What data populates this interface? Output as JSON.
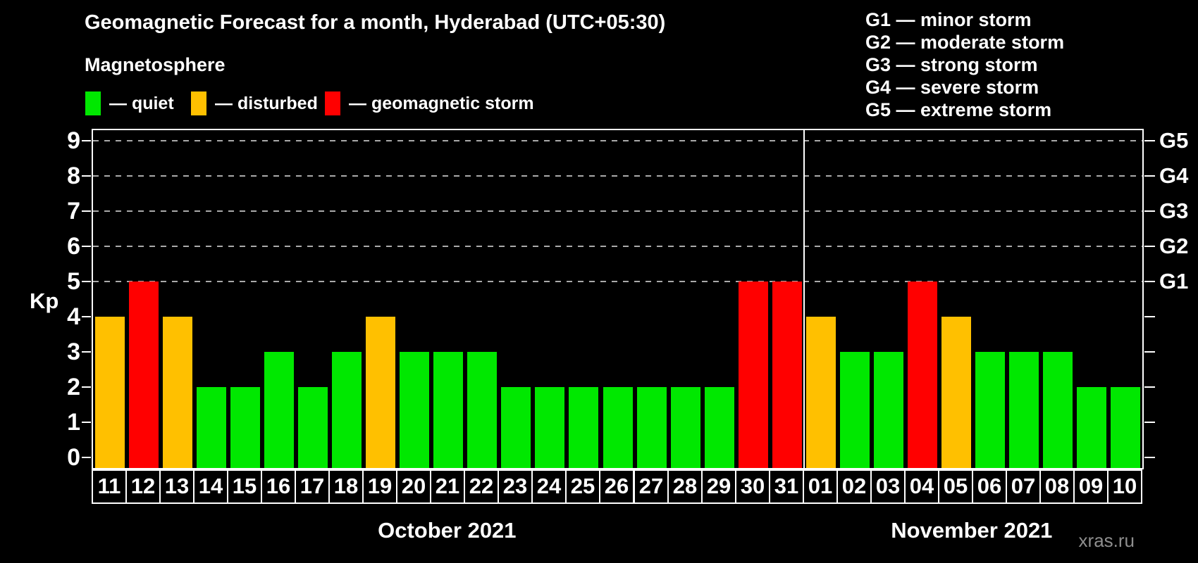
{
  "header": {
    "title": "Geomagnetic Forecast for a month, Hyderabad (UTC+05:30)",
    "subtitle": "Magnetosphere"
  },
  "status_legend": {
    "items": [
      {
        "label": "— quiet",
        "swatch_color": "#00e800",
        "status": "quiet"
      },
      {
        "label": "— disturbed",
        "swatch_color": "#ffc000",
        "status": "disturbed"
      },
      {
        "label": "— geomagnetic storm",
        "swatch_color": "#ff0000",
        "status": "storm"
      }
    ]
  },
  "g_scale_legend": {
    "lines": [
      "G1 — minor storm",
      "G2 — moderate storm",
      "G3 — strong storm",
      "G4 — severe storm",
      "G5 — extreme storm"
    ]
  },
  "watermark": "xras.ru",
  "chart_data": {
    "type": "bar",
    "title": "Geomagnetic Forecast for a month, Hyderabad (UTC+05:30)",
    "xlabel": "",
    "ylabel": "Kp",
    "ylim": [
      0,
      9
    ],
    "y_ticks": [
      0,
      1,
      2,
      3,
      4,
      5,
      6,
      7,
      8,
      9
    ],
    "gridlines_at": [
      5,
      6,
      7,
      8,
      9
    ],
    "grid": "dashed-horizontal",
    "legend_position": "top",
    "right_axis_labels": [
      {
        "value": 5,
        "label": "G1"
      },
      {
        "value": 6,
        "label": "G2"
      },
      {
        "value": 7,
        "label": "G3"
      },
      {
        "value": 8,
        "label": "G4"
      },
      {
        "value": 9,
        "label": "G5"
      }
    ],
    "status_colors": {
      "quiet": "#00e800",
      "disturbed": "#ffc000",
      "storm": "#ff0000"
    },
    "groups": [
      {
        "label": "October 2021",
        "days": [
          {
            "day": "11",
            "kp": 4,
            "status": "disturbed"
          },
          {
            "day": "12",
            "kp": 5,
            "status": "storm"
          },
          {
            "day": "13",
            "kp": 4,
            "status": "disturbed"
          },
          {
            "day": "14",
            "kp": 2,
            "status": "quiet"
          },
          {
            "day": "15",
            "kp": 2,
            "status": "quiet"
          },
          {
            "day": "16",
            "kp": 3,
            "status": "quiet"
          },
          {
            "day": "17",
            "kp": 2,
            "status": "quiet"
          },
          {
            "day": "18",
            "kp": 3,
            "status": "quiet"
          },
          {
            "day": "19",
            "kp": 4,
            "status": "disturbed"
          },
          {
            "day": "20",
            "kp": 3,
            "status": "quiet"
          },
          {
            "day": "21",
            "kp": 3,
            "status": "quiet"
          },
          {
            "day": "22",
            "kp": 3,
            "status": "quiet"
          },
          {
            "day": "23",
            "kp": 2,
            "status": "quiet"
          },
          {
            "day": "24",
            "kp": 2,
            "status": "quiet"
          },
          {
            "day": "25",
            "kp": 2,
            "status": "quiet"
          },
          {
            "day": "26",
            "kp": 2,
            "status": "quiet"
          },
          {
            "day": "27",
            "kp": 2,
            "status": "quiet"
          },
          {
            "day": "28",
            "kp": 2,
            "status": "quiet"
          },
          {
            "day": "29",
            "kp": 2,
            "status": "quiet"
          },
          {
            "day": "30",
            "kp": 5,
            "status": "storm"
          },
          {
            "day": "31",
            "kp": 5,
            "status": "storm"
          }
        ]
      },
      {
        "label": "November 2021",
        "days": [
          {
            "day": "01",
            "kp": 4,
            "status": "disturbed"
          },
          {
            "day": "02",
            "kp": 3,
            "status": "quiet"
          },
          {
            "day": "03",
            "kp": 3,
            "status": "quiet"
          },
          {
            "day": "04",
            "kp": 5,
            "status": "storm"
          },
          {
            "day": "05",
            "kp": 4,
            "status": "disturbed"
          },
          {
            "day": "06",
            "kp": 3,
            "status": "quiet"
          },
          {
            "day": "07",
            "kp": 3,
            "status": "quiet"
          },
          {
            "day": "08",
            "kp": 3,
            "status": "quiet"
          },
          {
            "day": "09",
            "kp": 2,
            "status": "quiet"
          },
          {
            "day": "10",
            "kp": 2,
            "status": "quiet"
          }
        ]
      }
    ]
  }
}
